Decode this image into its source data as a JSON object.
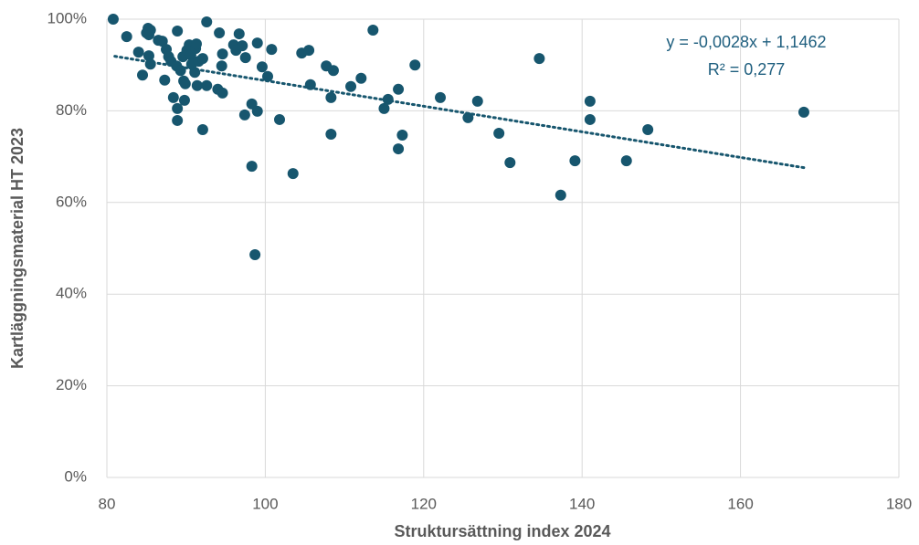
{
  "chart_data": {
    "type": "scatter",
    "xlabel": "Struktursättning index 2024",
    "ylabel": "Kartläggningsmaterial HT 2023",
    "color": "#17566e",
    "x": [
      80.8,
      82.5,
      84,
      84.5,
      85,
      85.2,
      85.3,
      85.5,
      85.3,
      85.5,
      86.5,
      87,
      87.3,
      87.5,
      87.8,
      88.1,
      88.4,
      88.9,
      88.8,
      88.9,
      88.9,
      89.3,
      89.6,
      89.7,
      89.8,
      89.9,
      90.1,
      90.4,
      90.6,
      90.7,
      91.1,
      91.2,
      91.3,
      91.4,
      91.6,
      92.1,
      92.1,
      92.6,
      92.6,
      94.2,
      94,
      94.6,
      94.5,
      94.6,
      96,
      96.3,
      96.7,
      97.1,
      97.5,
      97.4,
      98.3,
      99,
      98.3,
      99,
      99.6,
      100.3,
      100.8,
      98.7,
      101.8,
      103.5,
      104.6,
      105.5,
      105.7,
      107.7,
      108.6,
      108.3,
      108.3,
      110.8,
      112.1,
      113.6,
      115,
      115.5,
      116.8,
      116.8,
      117.3,
      118.9,
      122.1,
      125.6,
      126.8,
      129.5,
      130.9,
      134.6,
      137.3,
      139.1,
      141,
      141,
      145.6,
      148.3,
      168
    ],
    "values": [
      100,
      96.2,
      92.8,
      87.8,
      97,
      98,
      96.6,
      97.6,
      92,
      90.2,
      95.4,
      95.2,
      86.7,
      93.4,
      91.8,
      90.8,
      82.9,
      97.4,
      89.8,
      80.5,
      77.9,
      88.8,
      91.8,
      86.5,
      82.3,
      85.9,
      93.2,
      94.4,
      92.2,
      90.2,
      88.4,
      93.6,
      94.6,
      85.5,
      90.8,
      91.4,
      75.9,
      99.4,
      85.5,
      97,
      84.7,
      92.4,
      89.8,
      83.9,
      94.4,
      93.2,
      96.8,
      94.2,
      91.6,
      79.1,
      81.5,
      79.9,
      67.9,
      94.8,
      89.6,
      87.5,
      93.4,
      48.6,
      78.1,
      66.3,
      92.6,
      93.2,
      85.7,
      89.8,
      88.8,
      82.9,
      74.9,
      85.3,
      87.1,
      97.6,
      80.5,
      82.5,
      84.7,
      71.7,
      74.7,
      90,
      82.9,
      78.5,
      82.1,
      75.1,
      68.7,
      91.4,
      61.6,
      69.1,
      82.1,
      78.1,
      69.1,
      75.9,
      79.7
    ],
    "xlim": [
      80,
      180
    ],
    "xticks": [
      80,
      100,
      120,
      140,
      160,
      180
    ],
    "ylim": [
      0,
      100
    ],
    "yticks": [
      {
        "value": 0,
        "label": "0%"
      },
      {
        "value": 20,
        "label": "20%"
      },
      {
        "value": 40,
        "label": "40%"
      },
      {
        "value": 60,
        "label": "60%"
      },
      {
        "value": 80,
        "label": "80%"
      },
      {
        "value": 100,
        "label": "100%"
      }
    ],
    "grid": true,
    "trendline": {
      "x": [
        81,
        168
      ],
      "y": [
        91.9,
        67.6
      ],
      "equation": "y = -0,0028x + 1,1462",
      "r2": "R² = 0,277"
    }
  }
}
